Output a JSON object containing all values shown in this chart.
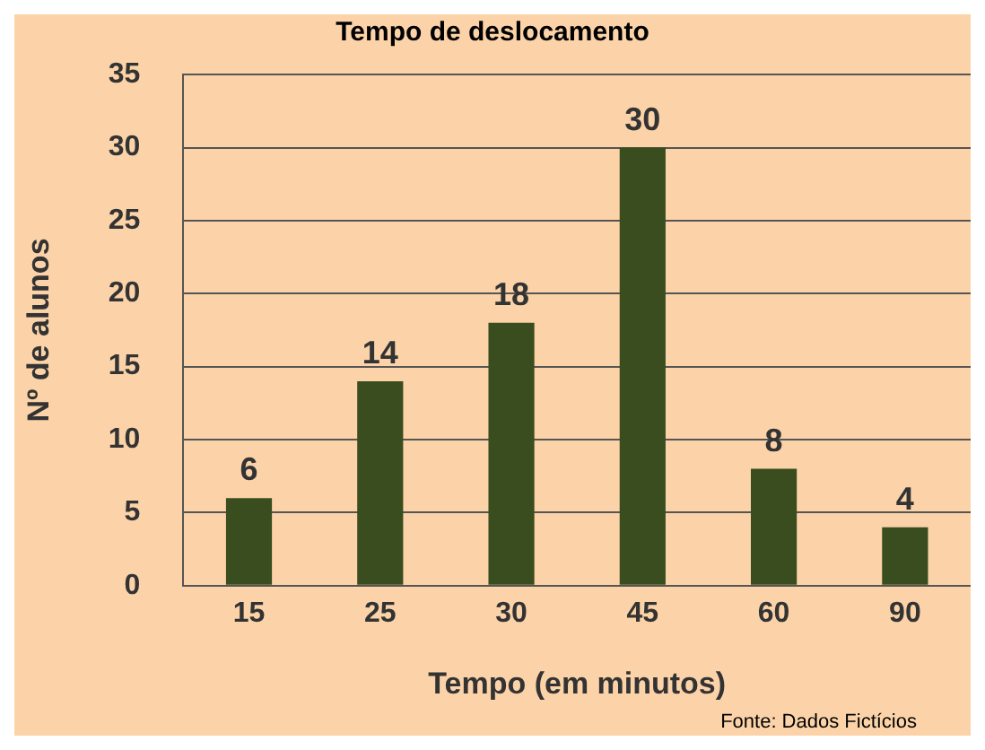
{
  "chart_data": {
    "type": "bar",
    "title": "Tempo de deslocamento",
    "xlabel": "Tempo (em minutos)",
    "ylabel": "Nº de alunos",
    "annotations": [
      "Fonte: Dados Fictícios"
    ],
    "categories": [
      "15",
      "25",
      "30",
      "45",
      "60",
      "90"
    ],
    "values": [
      6,
      14,
      18,
      30,
      8,
      4
    ],
    "color": "#3a4d1e",
    "ylim": [
      0,
      35
    ],
    "yticks": [
      0,
      5,
      10,
      15,
      20,
      25,
      30,
      35
    ],
    "grid": "y",
    "data_labels": true,
    "legend": false
  }
}
